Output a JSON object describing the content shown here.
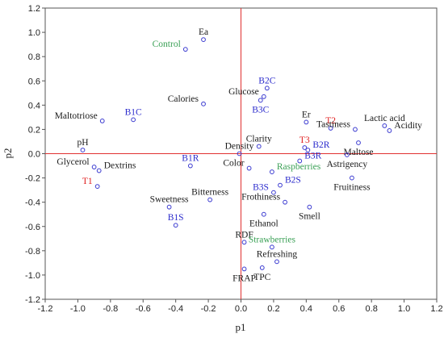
{
  "chart_data": {
    "type": "scatter",
    "xlabel": "p1",
    "ylabel": "p2",
    "xlim": [
      -1.2,
      1.2
    ],
    "ylim": [
      -1.2,
      1.2
    ],
    "xticks": [
      "-1.2",
      "-1.0",
      "-0.8",
      "-0.6",
      "-0.4",
      "-0.2",
      "0.0",
      "0.2",
      "0.4",
      "0.6",
      "0.8",
      "1.0",
      "1.2"
    ],
    "yticks": [
      "1.2",
      "1.0",
      "0.8",
      "0.6",
      "0.4",
      "0.2",
      "0.0",
      "-0.2",
      "-0.4",
      "-0.6",
      "-0.8",
      "-1.0",
      "-1.2"
    ],
    "grid": false,
    "reference_lines": {
      "x": 0,
      "y": 0,
      "color": "#e03030"
    },
    "marker_color": "#3a3ad0",
    "colors": {
      "black": "#1a1a1a",
      "blue": "#2a2acc",
      "red": "#e02020",
      "green": "#3aa055"
    },
    "points": [
      {
        "label": "Ea",
        "x": -0.23,
        "y": 0.94,
        "color": "black",
        "anchor": "above"
      },
      {
        "label": "Control",
        "x": -0.34,
        "y": 0.86,
        "color": "green",
        "anchor": "left"
      },
      {
        "label": "B2C",
        "x": 0.16,
        "y": 0.54,
        "color": "blue",
        "anchor": "above"
      },
      {
        "label": "Glucose",
        "x": 0.14,
        "y": 0.47,
        "color": "black",
        "anchor": "left"
      },
      {
        "label": "Calories",
        "x": -0.23,
        "y": 0.41,
        "color": "black",
        "anchor": "left"
      },
      {
        "label": "B3C",
        "x": 0.12,
        "y": 0.44,
        "color": "blue",
        "anchor": "below"
      },
      {
        "label": "Maltotriose",
        "x": -0.85,
        "y": 0.27,
        "color": "black",
        "anchor": "left"
      },
      {
        "label": "B1C",
        "x": -0.66,
        "y": 0.28,
        "color": "blue",
        "anchor": "above"
      },
      {
        "label": "Er",
        "x": 0.4,
        "y": 0.26,
        "color": "black",
        "anchor": "above"
      },
      {
        "label": "T2",
        "x": 0.55,
        "y": 0.21,
        "color": "red",
        "anchor": "above"
      },
      {
        "label": "Tastiness",
        "x": 0.7,
        "y": 0.2,
        "color": "black",
        "anchor": "left"
      },
      {
        "label": "Lactic acid",
        "x": 0.88,
        "y": 0.23,
        "color": "black",
        "anchor": "above"
      },
      {
        "label": "Acidity",
        "x": 0.91,
        "y": 0.19,
        "color": "black",
        "anchor": "right"
      },
      {
        "label": "pH",
        "x": -0.97,
        "y": 0.03,
        "color": "black",
        "anchor": "above"
      },
      {
        "label": "Clarity",
        "x": 0.11,
        "y": 0.06,
        "color": "black",
        "anchor": "above"
      },
      {
        "label": "T3",
        "x": 0.39,
        "y": 0.05,
        "color": "red",
        "anchor": "above"
      },
      {
        "label": "B2R",
        "x": 0.41,
        "y": 0.03,
        "color": "blue",
        "anchor": "right"
      },
      {
        "label": "Maltose",
        "x": 0.72,
        "y": 0.09,
        "color": "black",
        "anchor": "below"
      },
      {
        "label": "Density",
        "x": -0.01,
        "y": 0.0,
        "color": "black",
        "anchor": "above"
      },
      {
        "label": "B3R",
        "x": 0.36,
        "y": -0.06,
        "color": "blue",
        "anchor": "right"
      },
      {
        "label": "Astrigency",
        "x": 0.65,
        "y": -0.01,
        "color": "black",
        "anchor": "below"
      },
      {
        "label": "Glycerol",
        "x": -0.9,
        "y": -0.11,
        "color": "black",
        "anchor": "left"
      },
      {
        "label": "Dextrins",
        "x": -0.87,
        "y": -0.14,
        "color": "black",
        "anchor": "right"
      },
      {
        "label": "B1R",
        "x": -0.31,
        "y": -0.1,
        "color": "blue",
        "anchor": "above"
      },
      {
        "label": "Color",
        "x": 0.05,
        "y": -0.12,
        "color": "black",
        "anchor": "left"
      },
      {
        "label": "Raspberries",
        "x": 0.19,
        "y": -0.15,
        "color": "green",
        "anchor": "right"
      },
      {
        "label": "Fruitiness",
        "x": 0.68,
        "y": -0.2,
        "color": "black",
        "anchor": "below"
      },
      {
        "label": "T1",
        "x": -0.88,
        "y": -0.27,
        "color": "red",
        "anchor": "left"
      },
      {
        "label": "B3S",
        "x": 0.2,
        "y": -0.32,
        "color": "blue",
        "anchor": "left"
      },
      {
        "label": "B2S",
        "x": 0.24,
        "y": -0.26,
        "color": "blue",
        "anchor": "right"
      },
      {
        "label": "Bitterness",
        "x": -0.19,
        "y": -0.38,
        "color": "black",
        "anchor": "above"
      },
      {
        "label": "Frothiness",
        "x": 0.27,
        "y": -0.4,
        "color": "black",
        "anchor": "left"
      },
      {
        "label": "Sweetness",
        "x": -0.44,
        "y": -0.44,
        "color": "black",
        "anchor": "above"
      },
      {
        "label": "Smell",
        "x": 0.42,
        "y": -0.44,
        "color": "black",
        "anchor": "below"
      },
      {
        "label": "Ethanol",
        "x": 0.14,
        "y": -0.5,
        "color": "black",
        "anchor": "below"
      },
      {
        "label": "B1S",
        "x": -0.4,
        "y": -0.59,
        "color": "blue",
        "anchor": "above"
      },
      {
        "label": "RDF",
        "x": 0.02,
        "y": -0.73,
        "color": "black",
        "anchor": "above"
      },
      {
        "label": "Strawberries",
        "x": 0.19,
        "y": -0.77,
        "color": "green",
        "anchor": "above"
      },
      {
        "label": "Refreshing",
        "x": 0.22,
        "y": -0.89,
        "color": "black",
        "anchor": "above"
      },
      {
        "label": "TPC",
        "x": 0.13,
        "y": -0.94,
        "color": "black",
        "anchor": "below"
      },
      {
        "label": "FRAP",
        "x": 0.02,
        "y": -0.95,
        "color": "black",
        "anchor": "below"
      }
    ]
  }
}
